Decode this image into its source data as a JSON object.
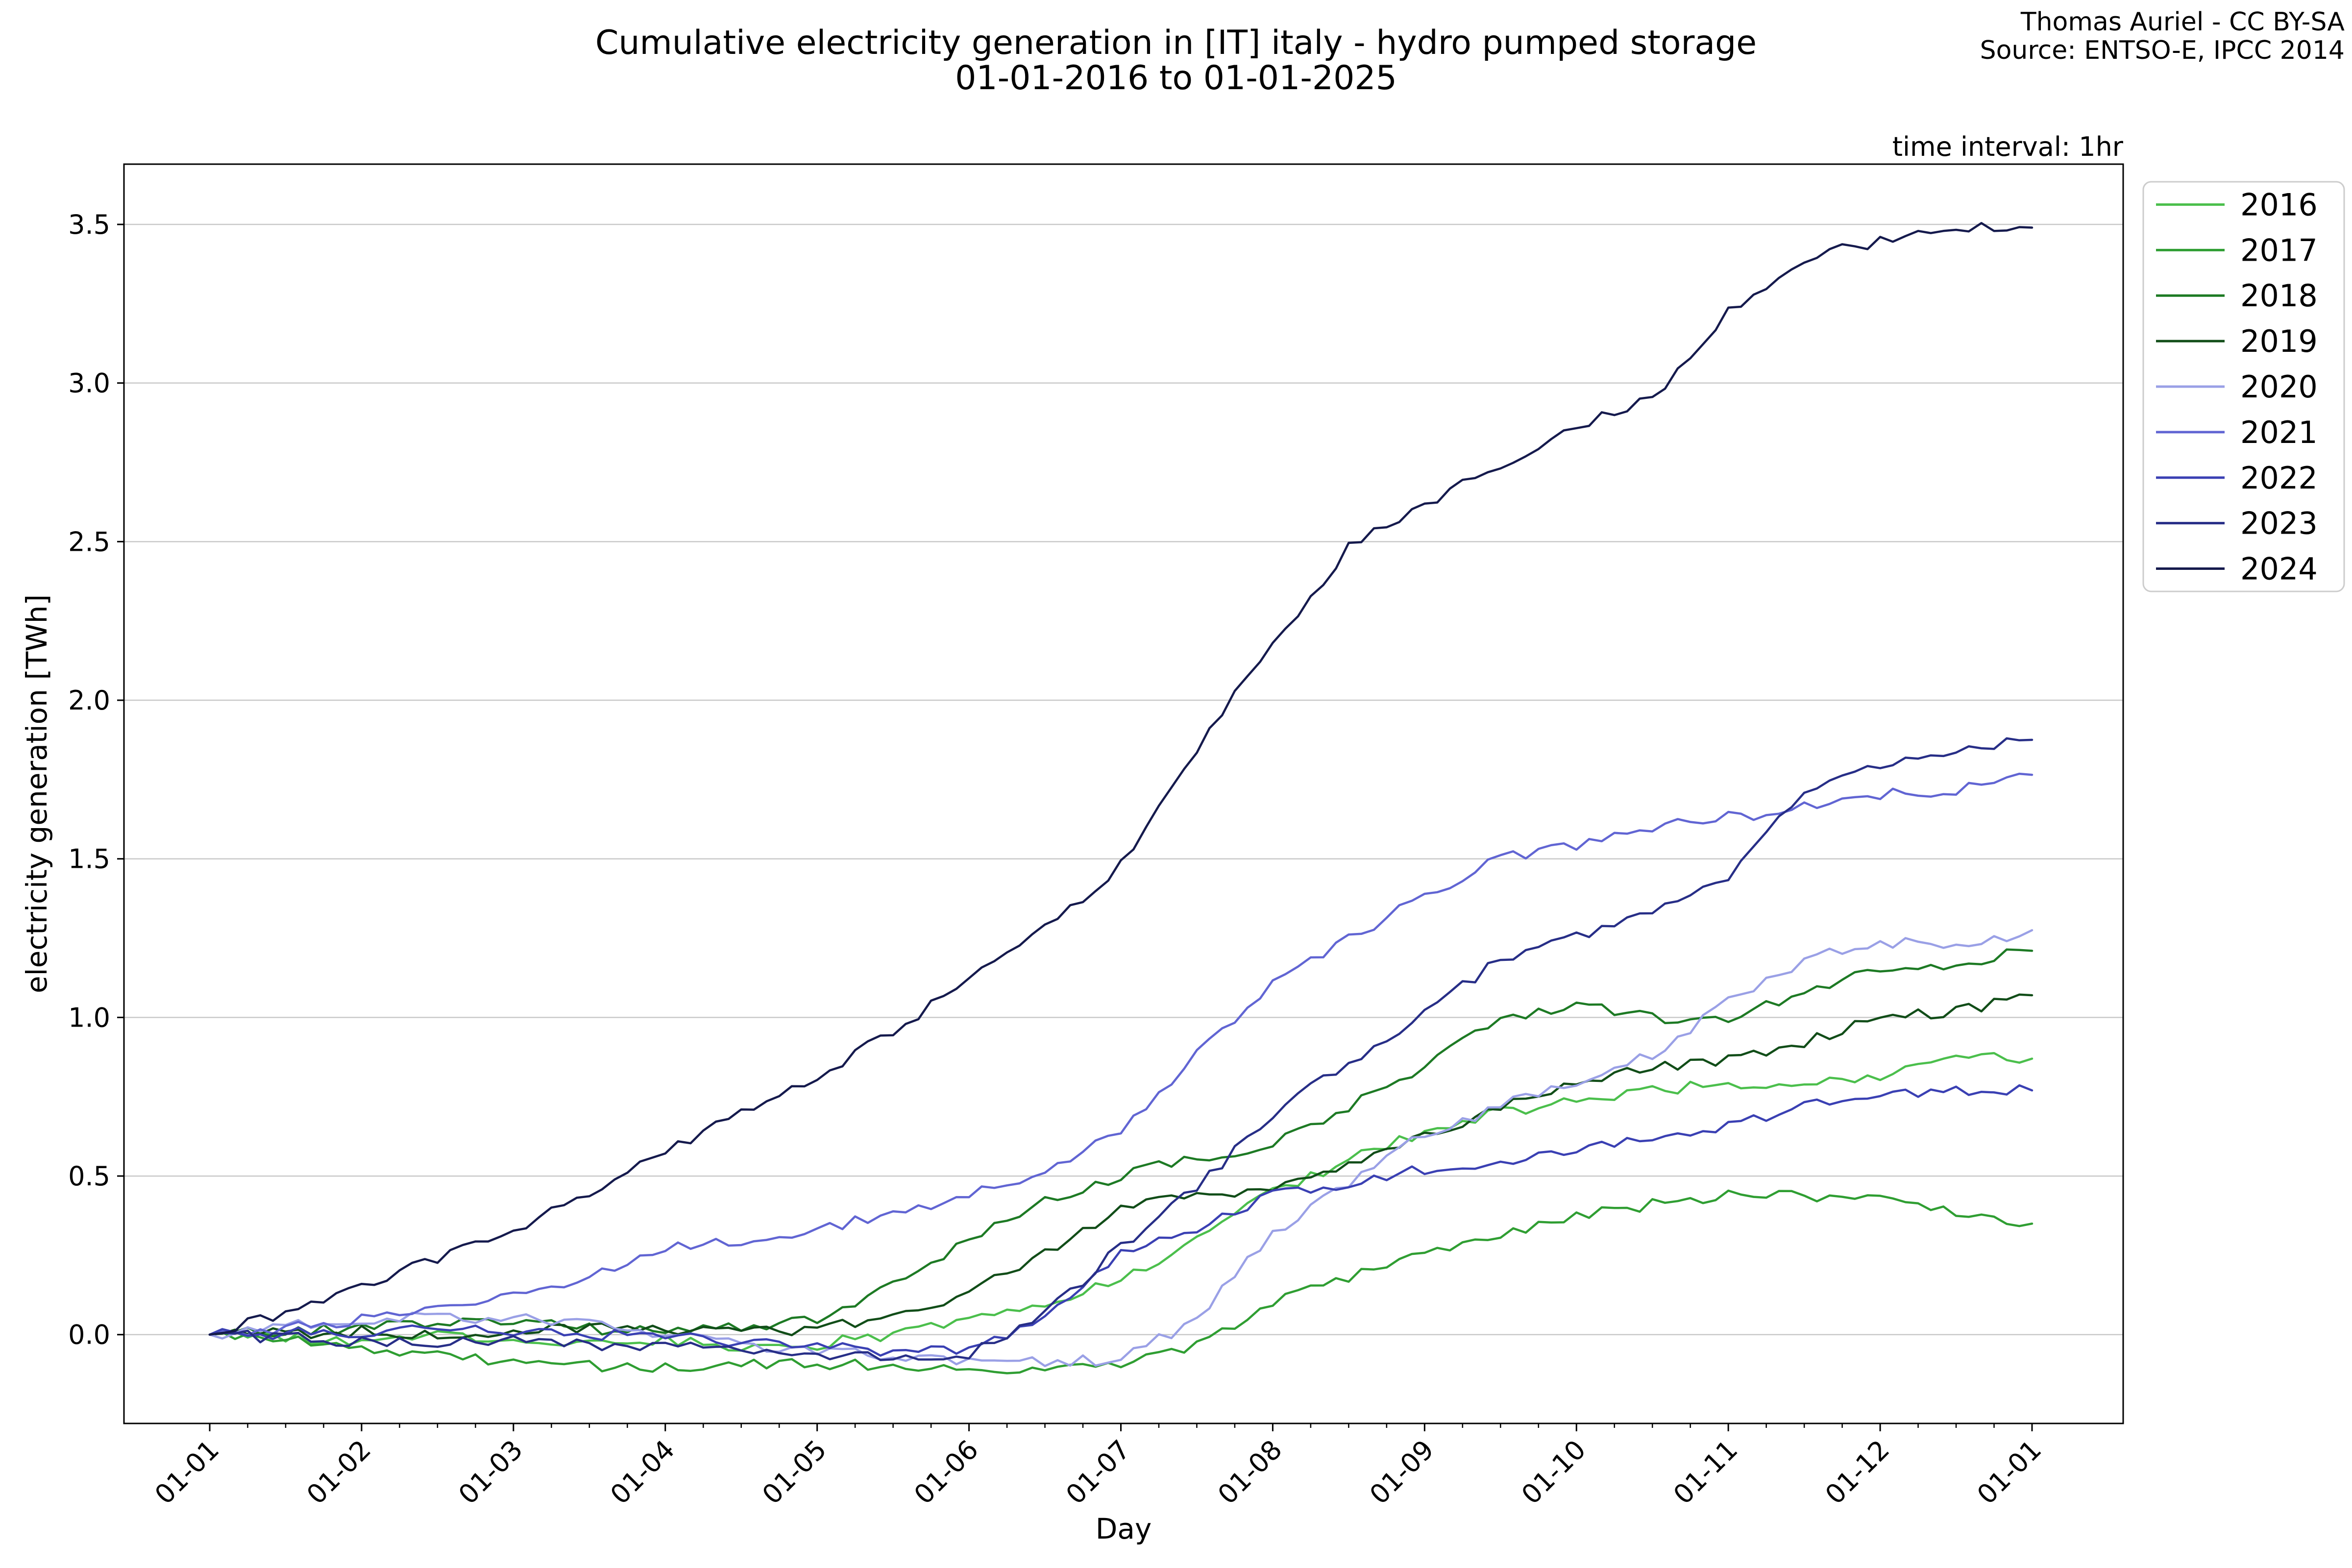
{
  "header": {
    "title_line1": "Cumulative electricity generation in [IT] italy - hydro pumped storage",
    "title_line2": "01-01-2016 to 01-01-2025",
    "attribution_line1": "Thomas Auriel - CC BY-SA",
    "attribution_line2": "Source: ENTSO-E, IPCC 2014",
    "note": "time interval: 1hr"
  },
  "colors": {
    "background": "#ffffff",
    "grid": "#c9c9c9",
    "axis": "#000000",
    "text": "#000000",
    "legend_border": "#cccccc"
  },
  "chart_data": {
    "type": "line",
    "title": "Cumulative electricity generation in [IT] italy - hydro pumped storage 01-01-2016 to 01-01-2025",
    "xlabel": "Day",
    "ylabel": "electricity generation [TWh]",
    "x_tick_labels": [
      "01-01",
      "01-02",
      "01-03",
      "01-04",
      "01-05",
      "01-06",
      "01-07",
      "01-08",
      "01-09",
      "01-10",
      "01-11",
      "01-12",
      "01-01"
    ],
    "y_ticks": [
      0.0,
      0.5,
      1.0,
      1.5,
      2.0,
      2.5,
      3.0,
      3.5
    ],
    "y_tick_labels": [
      "0.0",
      "0.5",
      "1.0",
      "1.5",
      "2.0",
      "2.5",
      "3.0",
      "3.5"
    ],
    "ylim": [
      -0.28,
      3.69
    ],
    "grid": "horizontal",
    "legend_position": "outside upper right",
    "legend_note": "time interval: 1hr",
    "x_samples_per_month": 2,
    "x_unit": "months from 01-01, sampled every half month",
    "y_unit": "TWh",
    "series": [
      {
        "name": "2016",
        "color": "#4bbf4c",
        "values": [
          0,
          -0.01,
          -0.02,
          0.0,
          -0.02,
          -0.03,
          -0.02,
          -0.04,
          -0.03,
          0.0,
          0.04,
          0.1,
          0.18,
          0.3,
          0.45,
          0.55,
          0.64,
          0.7,
          0.74,
          0.77,
          0.79,
          0.8,
          0.82,
          0.88,
          0.87
        ]
      },
      {
        "name": "2017",
        "color": "#2f9e32",
        "values": [
          0,
          -0.02,
          -0.045,
          -0.07,
          -0.09,
          -0.1,
          -0.1,
          -0.095,
          -0.09,
          -0.1,
          -0.11,
          -0.105,
          -0.09,
          -0.03,
          0.1,
          0.18,
          0.25,
          0.31,
          0.38,
          0.41,
          0.44,
          0.44,
          0.42,
          0.38,
          0.35
        ]
      },
      {
        "name": "2018",
        "color": "#1d7a24",
        "values": [
          0,
          0.01,
          0.02,
          0.035,
          0.04,
          0.02,
          0.01,
          0.02,
          0.05,
          0.16,
          0.3,
          0.42,
          0.5,
          0.56,
          0.6,
          0.72,
          0.85,
          1.0,
          1.04,
          1.0,
          0.99,
          1.08,
          1.15,
          1.17,
          1.21
        ]
      },
      {
        "name": "2019",
        "color": "#114d18",
        "values": [
          0,
          0.005,
          0.01,
          0.0,
          0.01,
          0.02,
          0.015,
          0.005,
          0.02,
          0.06,
          0.13,
          0.26,
          0.4,
          0.44,
          0.46,
          0.54,
          0.62,
          0.72,
          0.8,
          0.84,
          0.87,
          0.92,
          1.0,
          1.02,
          1.07
        ]
      },
      {
        "name": "2020",
        "color": "#9aa0e6",
        "values": [
          0,
          0.03,
          0.05,
          0.06,
          0.05,
          0.03,
          0.0,
          -0.03,
          -0.05,
          -0.07,
          -0.09,
          -0.085,
          -0.08,
          0.05,
          0.32,
          0.48,
          0.63,
          0.72,
          0.8,
          0.88,
          1.05,
          1.18,
          1.24,
          1.22,
          1.275
        ]
      },
      {
        "name": "2021",
        "color": "#6165d3",
        "values": [
          0,
          0.02,
          0.05,
          0.08,
          0.12,
          0.19,
          0.27,
          0.3,
          0.33,
          0.38,
          0.44,
          0.5,
          0.65,
          0.88,
          1.1,
          1.25,
          1.38,
          1.5,
          1.54,
          1.6,
          1.63,
          1.66,
          1.7,
          1.72,
          1.765
        ]
      },
      {
        "name": "2022",
        "color": "#3a40b3",
        "values": [
          0,
          0.005,
          0.01,
          0.02,
          0.01,
          0.0,
          -0.01,
          -0.02,
          -0.03,
          -0.06,
          -0.05,
          0.05,
          0.25,
          0.33,
          0.44,
          0.48,
          0.52,
          0.55,
          0.58,
          0.62,
          0.66,
          0.72,
          0.76,
          0.77,
          0.77
        ]
      },
      {
        "name": "2023",
        "color": "#272e87",
        "values": [
          0,
          -0.01,
          -0.02,
          -0.03,
          -0.02,
          -0.03,
          -0.04,
          -0.05,
          -0.06,
          -0.08,
          -0.06,
          0.06,
          0.28,
          0.46,
          0.7,
          0.85,
          1.02,
          1.18,
          1.26,
          1.32,
          1.45,
          1.72,
          1.8,
          1.84,
          1.875
        ]
      },
      {
        "name": "2024",
        "color": "#151a4d",
        "values": [
          0,
          0.07,
          0.15,
          0.24,
          0.32,
          0.45,
          0.58,
          0.7,
          0.82,
          0.95,
          1.12,
          1.28,
          1.48,
          1.85,
          2.18,
          2.48,
          2.62,
          2.74,
          2.86,
          2.95,
          3.22,
          3.39,
          3.45,
          3.49,
          3.49
        ]
      }
    ]
  }
}
